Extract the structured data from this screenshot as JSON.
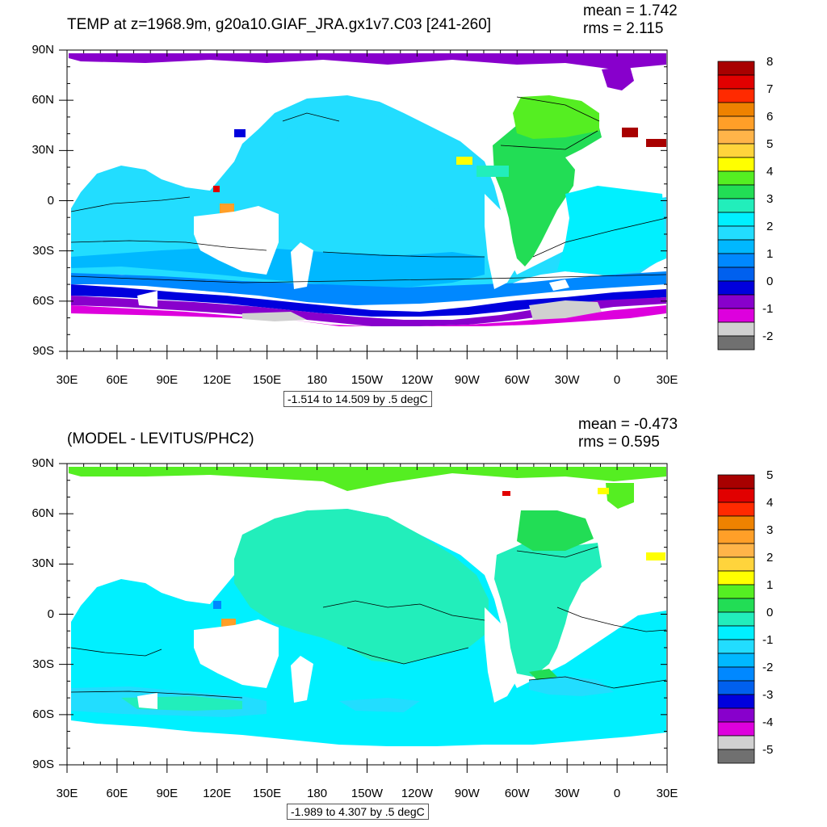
{
  "top": {
    "title": "TEMP at z=1968.9m, g20a10.GIAF_JRA.gx1v7.C03 [241-260]",
    "mean": "mean = 1.742",
    "rms": "rms = 2.115",
    "range": "-1.514 to 14.509 by .5 degC",
    "colorbar_labels": [
      "8",
      "7",
      "6",
      "5",
      "4",
      "3",
      "2",
      "1",
      "0",
      "-1",
      "-2"
    ]
  },
  "bottom": {
    "title": "(MODEL - LEVITUS/PHC2)",
    "mean": "mean = -0.473",
    "rms": "rms = 0.595",
    "range": "-1.989 to 4.307 by .5 degC",
    "colorbar_labels": [
      "5",
      "4",
      "3",
      "2",
      "1",
      "0",
      "-1",
      "-2",
      "-3",
      "-4",
      "-5"
    ]
  },
  "lat_labels": [
    "90N",
    "60N",
    "30N",
    "0",
    "30S",
    "60S",
    "90S"
  ],
  "lon_labels": [
    "30E",
    "60E",
    "90E",
    "120E",
    "150E",
    "180",
    "150W",
    "120W",
    "90W",
    "60W",
    "30W",
    "0",
    "30E"
  ],
  "colorbar_colors": [
    "#a80000",
    "#e10000",
    "#ff2a00",
    "#ee8200",
    "#ff9f28",
    "#ffb449",
    "#ffd43c",
    "#ffff00",
    "#55ee22",
    "#22dd55",
    "#22eebb",
    "#00f0ff",
    "#22ddff",
    "#00b8ff",
    "#0088ff",
    "#0060ee",
    "#0000dd",
    "#8800cc",
    "#dd00dd",
    "#d0d0d0",
    "#707070"
  ],
  "colors": {
    "land": "#ffffff",
    "frame": "#000000"
  }
}
